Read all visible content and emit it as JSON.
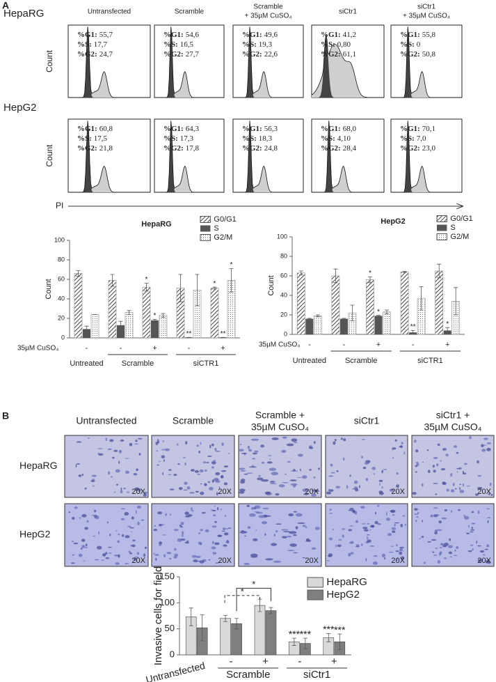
{
  "panel_a": {
    "label": "A",
    "column_titles": [
      [
        "Untransfected"
      ],
      [
        "Scramble"
      ],
      [
        "Scramble",
        "+ 35µM CuSO₄"
      ],
      [
        "siCtr1"
      ],
      [
        "siCtr1",
        "+ 35µM CuSO₄"
      ]
    ],
    "stat_labels": [
      "%G1:",
      "%S:",
      "%G2:"
    ],
    "y_axis_label": "Count",
    "x_axis_label": "PI",
    "rows": [
      {
        "name": "HepaRG",
        "stats": [
          [
            "55,7",
            "17,7",
            "24,7"
          ],
          [
            "54,6",
            "16,5",
            "27,7"
          ],
          [
            "49,6",
            "19,3",
            "22,6"
          ],
          [
            "41,2",
            "0,80",
            "61,1"
          ],
          [
            "55,8",
            "0",
            "50,8"
          ]
        ]
      },
      {
        "name": "HepG2",
        "stats": [
          [
            "60,8",
            "17,5",
            "21,8"
          ],
          [
            "64,3",
            "17,3",
            "17,8"
          ],
          [
            "56,3",
            "18,3",
            "24,8"
          ],
          [
            "68,0",
            "4,10",
            "28,4"
          ],
          [
            "70,1",
            "7,0",
            "23,0"
          ]
        ]
      }
    ]
  },
  "chart_data": [
    {
      "type": "bar",
      "title": "HepaRG",
      "y_label": "Count",
      "ylim": [
        0,
        100
      ],
      "yticks": [
        0,
        20,
        40,
        60,
        80,
        100
      ],
      "row_label": "35µM CuSO₄",
      "categories": [
        "-",
        "-",
        "+",
        "-",
        "+"
      ],
      "groups": [
        {
          "name": "Untreated",
          "count": 1
        },
        {
          "name": "Scramble",
          "count": 2
        },
        {
          "name": "siCTR1",
          "count": 2
        }
      ],
      "legend": "top-right",
      "series": [
        {
          "name": "G0/G1",
          "color": "#555555",
          "pattern": "hatch",
          "values": [
            66,
            59,
            52,
            51,
            51
          ],
          "errors": [
            3,
            6,
            4,
            14,
            1
          ],
          "significance": [
            null,
            null,
            "*",
            null,
            "*"
          ]
        },
        {
          "name": "S",
          "color": "#555555",
          "pattern": "solid",
          "values": [
            9,
            13,
            18,
            0.5,
            0.5
          ],
          "errors": [
            3,
            4,
            1,
            0,
            0
          ],
          "significance": [
            null,
            null,
            "*",
            "**",
            "**"
          ]
        },
        {
          "name": "G2/M",
          "color": "#999999",
          "pattern": "dots",
          "values": [
            24,
            26,
            23,
            49,
            59
          ],
          "errors": [
            0,
            2,
            2,
            16,
            12
          ],
          "significance": [
            null,
            null,
            null,
            null,
            "*"
          ]
        }
      ]
    },
    {
      "type": "bar",
      "title": "HepG2",
      "y_label": "Count",
      "ylim": [
        0,
        100
      ],
      "yticks": [
        0,
        20,
        40,
        60,
        80,
        100
      ],
      "row_label": "35µM CuSO₄",
      "categories": [
        "-",
        "-",
        "+",
        "-",
        "+"
      ],
      "groups": [
        {
          "name": "Untreated",
          "count": 1
        },
        {
          "name": "Scramble",
          "count": 2
        },
        {
          "name": "siCTR1",
          "count": 2
        }
      ],
      "legend": "top-right",
      "series": [
        {
          "name": "G0/G1",
          "color": "#555555",
          "pattern": "hatch",
          "values": [
            63,
            60,
            56,
            64,
            65
          ],
          "errors": [
            2,
            7,
            3,
            0.5,
            7
          ],
          "significance": [
            null,
            null,
            "*",
            null,
            null
          ]
        },
        {
          "name": "S",
          "color": "#555555",
          "pattern": "solid",
          "values": [
            16,
            16,
            19,
            2,
            4
          ],
          "errors": [
            0.5,
            0.5,
            0.5,
            2,
            3
          ],
          "significance": [
            null,
            null,
            "*",
            "**",
            "*"
          ]
        },
        {
          "name": "G2/M",
          "color": "#999999",
          "pattern": "dots",
          "values": [
            19,
            22,
            23,
            37,
            34
          ],
          "errors": [
            1,
            8,
            2,
            12,
            14
          ],
          "significance": [
            null,
            null,
            null,
            null,
            null
          ]
        }
      ]
    },
    {
      "type": "bar",
      "y_label": "Invasive cells for field",
      "ylim": [
        0,
        150
      ],
      "yticks": [
        0,
        50,
        100,
        150
      ],
      "categories": [
        null,
        "-",
        "+",
        "-",
        "+"
      ],
      "groups": [
        {
          "name": "Untransfected",
          "count": 1
        },
        {
          "name": "Scramble",
          "count": 2
        },
        {
          "name": "siCtr1",
          "count": 2
        }
      ],
      "legend": "top-right",
      "brackets": [
        {
          "label": "*",
          "style": "solid"
        },
        {
          "label": "*",
          "style": "dashed"
        }
      ],
      "series": [
        {
          "name": "HepaRG",
          "color": "#d9d9d9",
          "pattern": "solid",
          "values": [
            73,
            70,
            95,
            25,
            33
          ],
          "errors": [
            17,
            6,
            12,
            7,
            8
          ],
          "significance": [
            null,
            null,
            null,
            "***",
            "***"
          ]
        },
        {
          "name": "HepG2",
          "color": "#7f7f7f",
          "pattern": "solid",
          "values": [
            52,
            60,
            85,
            22,
            25
          ],
          "errors": [
            25,
            10,
            6,
            10,
            15
          ],
          "significance": [
            null,
            null,
            null,
            "***",
            "***"
          ]
        }
      ]
    }
  ],
  "panel_b": {
    "label": "B",
    "column_titles": [
      [
        "Untransfected"
      ],
      [
        "Scramble"
      ],
      [
        "Scramble +",
        "35µM CuSO₄"
      ],
      [
        "siCtr1"
      ],
      [
        "siCtr1 +",
        "35µM CuSO₄"
      ]
    ],
    "row_labels": [
      "HepaRG",
      "HepG2"
    ],
    "magnification": "20X"
  }
}
